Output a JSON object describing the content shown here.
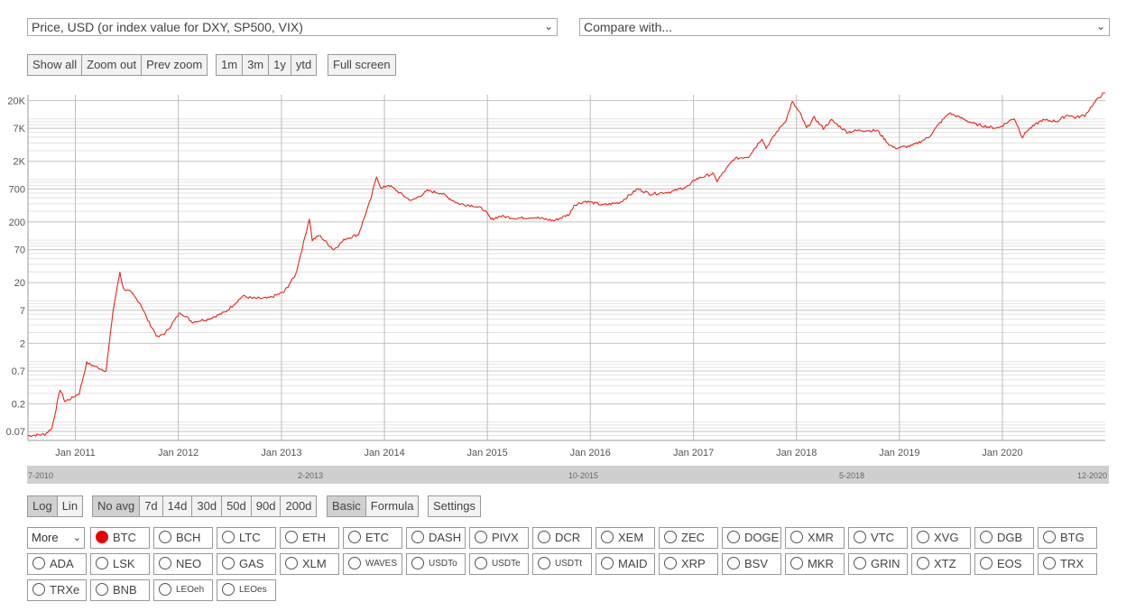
{
  "selects": {
    "metric": "Price, USD (or index value for DXY, SP500, VIX)",
    "compare": "Compare with..."
  },
  "zoom_buttons": [
    "Show all",
    "Zoom out",
    "Prev zoom"
  ],
  "range_buttons": [
    "1m",
    "3m",
    "1y",
    "ytd"
  ],
  "fullscreen_label": "Full screen",
  "scale_buttons": [
    {
      "label": "Log",
      "active": true
    },
    {
      "label": "Lin",
      "active": false
    }
  ],
  "avg_buttons": [
    {
      "label": "No avg",
      "active": true
    },
    {
      "label": "7d",
      "active": false
    },
    {
      "label": "14d",
      "active": false
    },
    {
      "label": "30d",
      "active": false
    },
    {
      "label": "50d",
      "active": false
    },
    {
      "label": "90d",
      "active": false
    },
    {
      "label": "200d",
      "active": false
    }
  ],
  "mode_buttons": [
    {
      "label": "Basic",
      "active": true
    },
    {
      "label": "Formula",
      "active": false
    }
  ],
  "settings_label": "Settings",
  "more_label": "More",
  "scroller_labels": [
    "7-2010",
    "2-2013",
    "10-2015",
    "5-2018",
    "12-2020"
  ],
  "coins": [
    [
      "BTC",
      "BCH",
      "LTC",
      "ETH",
      "ETC",
      "DASH",
      "PIVX",
      "DCR",
      "XEM",
      "ZEC",
      "DOGE",
      "XMR",
      "VTC",
      "XVG",
      "DGB",
      "BTG"
    ],
    [
      "ADA",
      "LSK",
      "NEO",
      "GAS",
      "XLM",
      "WAVES",
      "USDTo",
      "USDTe",
      "USDTt",
      "MAID",
      "XRP",
      "BSV",
      "MKR",
      "GRIN",
      "XTZ",
      "EOS",
      "TRX"
    ],
    [
      "TRXe",
      "BNB",
      "LEOeh",
      "LEOes"
    ]
  ],
  "selected_coin": "BTC",
  "colors": {
    "series": "#e8261a",
    "selected": "#e00000"
  },
  "chart_data": {
    "type": "line",
    "y_scale": "log",
    "ylim": [
      0.05,
      25000
    ],
    "xlim": [
      "2010-07-17",
      "2020-12-31"
    ],
    "y_ticks": [
      "0.07",
      "0.2",
      "0.7",
      "2",
      "7",
      "20",
      "70",
      "200",
      "700",
      "2K",
      "7K",
      "20K"
    ],
    "x_ticks": [
      "Jan 2011",
      "Jan 2012",
      "Jan 2013",
      "Jan 2014",
      "Jan 2015",
      "Jan 2016",
      "Jan 2017",
      "Jan 2018",
      "Jan 2019",
      "Jan 2020"
    ],
    "grid": true,
    "series": [
      {
        "x": [
          "2010-07-17",
          "2010-09-15",
          "2010-10-10",
          "2010-11-08",
          "2010-11-25",
          "2010-12-20",
          "2011-01-15",
          "2011-02-10",
          "2011-03-20",
          "2011-04-20",
          "2011-05-15",
          "2011-06-08",
          "2011-06-20",
          "2011-07-15",
          "2011-08-20",
          "2011-09-15",
          "2011-10-20",
          "2011-11-18",
          "2012-01-08",
          "2012-02-20",
          "2012-04-15",
          "2012-06-15",
          "2012-08-17",
          "2012-09-20",
          "2012-11-15",
          "2013-01-10",
          "2013-02-20",
          "2013-03-20",
          "2013-04-10",
          "2013-04-20",
          "2013-05-15",
          "2013-07-05",
          "2013-08-15",
          "2013-10-01",
          "2013-11-15",
          "2013-12-04",
          "2013-12-20",
          "2014-01-15",
          "2014-02-25",
          "2014-03-20",
          "2014-04-10",
          "2014-06-03",
          "2014-07-20",
          "2014-09-20",
          "2014-11-15",
          "2014-12-20",
          "2015-01-14",
          "2015-02-15",
          "2015-04-15",
          "2015-06-15",
          "2015-08-25",
          "2015-10-20",
          "2015-11-04",
          "2015-12-15",
          "2016-02-15",
          "2016-04-15",
          "2016-06-17",
          "2016-08-02",
          "2016-10-15",
          "2016-12-20",
          "2017-01-04",
          "2017-03-10",
          "2017-03-25",
          "2017-05-25",
          "2017-07-15",
          "2017-09-01",
          "2017-09-15",
          "2017-10-20",
          "2017-11-25",
          "2017-12-17",
          "2018-01-15",
          "2018-02-06",
          "2018-03-05",
          "2018-04-06",
          "2018-05-05",
          "2018-06-29",
          "2018-08-15",
          "2018-10-15",
          "2018-11-25",
          "2018-12-15",
          "2019-02-15",
          "2019-04-15",
          "2019-05-20",
          "2019-06-26",
          "2019-08-15",
          "2019-09-25",
          "2019-11-25",
          "2019-12-20",
          "2020-02-12",
          "2020-03-12",
          "2020-03-30",
          "2020-05-20",
          "2020-07-15",
          "2020-08-20",
          "2020-09-15",
          "2020-10-20",
          "2020-11-20",
          "2020-12-31"
        ],
        "y": [
          0.06,
          0.063,
          0.08,
          0.35,
          0.22,
          0.25,
          0.3,
          0.95,
          0.8,
          0.7,
          7,
          30,
          16,
          14,
          9,
          4.8,
          2.5,
          3,
          6.5,
          4.5,
          5,
          6.5,
          12,
          11,
          11,
          14,
          27,
          90,
          230,
          100,
          120,
          70,
          105,
          125,
          500,
          1150,
          700,
          820,
          600,
          500,
          450,
          650,
          600,
          400,
          370,
          320,
          220,
          250,
          230,
          240,
          210,
          270,
          380,
          440,
          380,
          420,
          700,
          580,
          630,
          800,
          1000,
          1250,
          950,
          2200,
          2400,
          4800,
          3300,
          5800,
          9600,
          19000,
          12000,
          7000,
          10500,
          7000,
          9500,
          6100,
          6500,
          6400,
          3800,
          3300,
          3600,
          5000,
          8100,
          12500,
          10000,
          8200,
          7200,
          7200,
          10300,
          5000,
          6500,
          9500,
          9200,
          11800,
          10500,
          11500,
          18000,
          29000
        ]
      }
    ]
  }
}
